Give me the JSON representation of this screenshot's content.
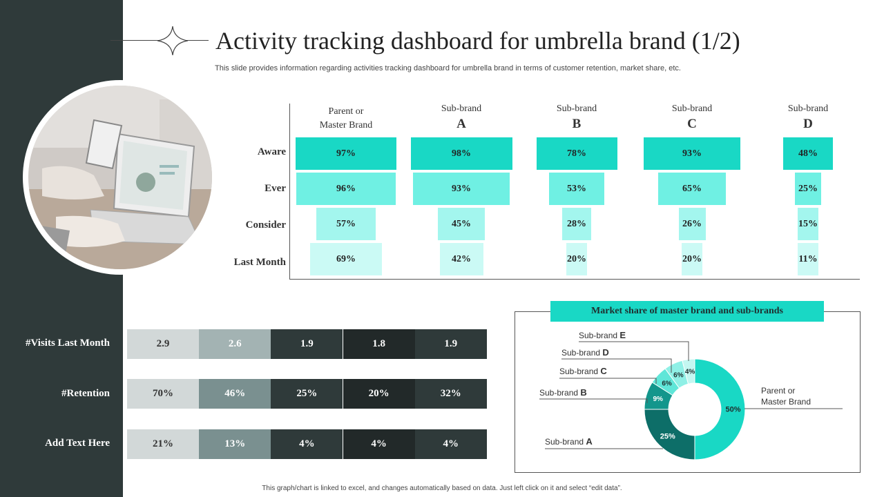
{
  "header": {
    "title": "Activity tracking dashboard for umbrella brand (1/2)",
    "subtitle": "This slide provides information regarding activities tracking dashboard for umbrella brand in terms of customer retention, market share, etc."
  },
  "footer": {
    "note": "This graph/chart is linked to excel, and changes automatically based on data. Just left click on it and select “edit data”."
  },
  "colors": {
    "dark": "#2f3a3a",
    "accent": "#19d8c5"
  },
  "chart_data": [
    {
      "type": "funnel",
      "title": "",
      "columns": [
        {
          "line1": "Parent or",
          "line2": "Master Brand"
        },
        {
          "line1": "Sub-brand",
          "line2": "A"
        },
        {
          "line1": "Sub-brand",
          "line2": "B"
        },
        {
          "line1": "Sub-brand",
          "line2": "C"
        },
        {
          "line1": "Sub-brand",
          "line2": "D"
        }
      ],
      "rows": [
        "Aware",
        "Ever",
        "Consider",
        "Last Month"
      ],
      "values": [
        [
          97,
          96,
          57,
          69
        ],
        [
          98,
          93,
          45,
          42
        ],
        [
          78,
          53,
          28,
          20
        ],
        [
          93,
          65,
          26,
          20
        ],
        [
          48,
          25,
          15,
          11
        ]
      ],
      "row_colors": [
        "#19d8c5",
        "#6ff0e3",
        "#a3f6ee",
        "#cbfaf5"
      ]
    },
    {
      "type": "table",
      "rows": [
        {
          "label": "#Visits Last Month",
          "values": [
            "2.9",
            "2.6",
            "1.9",
            "1.8",
            "1.9"
          ]
        },
        {
          "label": "#Retention",
          "values": [
            "70%",
            "46%",
            "25%",
            "20%",
            "32%"
          ]
        },
        {
          "label": "Add Text Here",
          "values": [
            "21%",
            "13%",
            "4%",
            "4%",
            "4%"
          ]
        }
      ],
      "column_colors": [
        "#d2d8d8",
        "#a3b3b3",
        "#2f3a3a",
        "#222929",
        "#2f3a3a"
      ],
      "row1_column_colors": [
        "#d2d8d8",
        "#7a9090",
        "#2f3a3a",
        "#222929",
        "#2f3a3a"
      ]
    },
    {
      "type": "pie",
      "title": "Market share of master brand  and sub-brands",
      "slices": [
        {
          "label": "Parent or Master Brand",
          "value": 50,
          "color": "#19d8c5"
        },
        {
          "label": "Sub-brand A",
          "value": 25,
          "color": "#0d6e68"
        },
        {
          "label": "Sub-brand B",
          "value": 9,
          "color": "#13968c"
        },
        {
          "label": "Sub-brand C",
          "value": 6,
          "color": "#5fe6d8"
        },
        {
          "label": "Sub-brand D",
          "value": 6,
          "color": "#8ff0e6"
        },
        {
          "label": "Sub-brand E",
          "value": 4,
          "color": "#c3f7f1"
        }
      ],
      "legend": [
        {
          "name": "Parent or",
          "name2": "Master Brand"
        },
        {
          "name": "Sub-brand",
          "letter": "A"
        },
        {
          "name": "Sub-brand",
          "letter": "B"
        },
        {
          "name": "Sub-brand",
          "letter": "C"
        },
        {
          "name": "Sub-brand",
          "letter": "D"
        },
        {
          "name": "Sub-brand",
          "letter": "E"
        }
      ]
    }
  ]
}
